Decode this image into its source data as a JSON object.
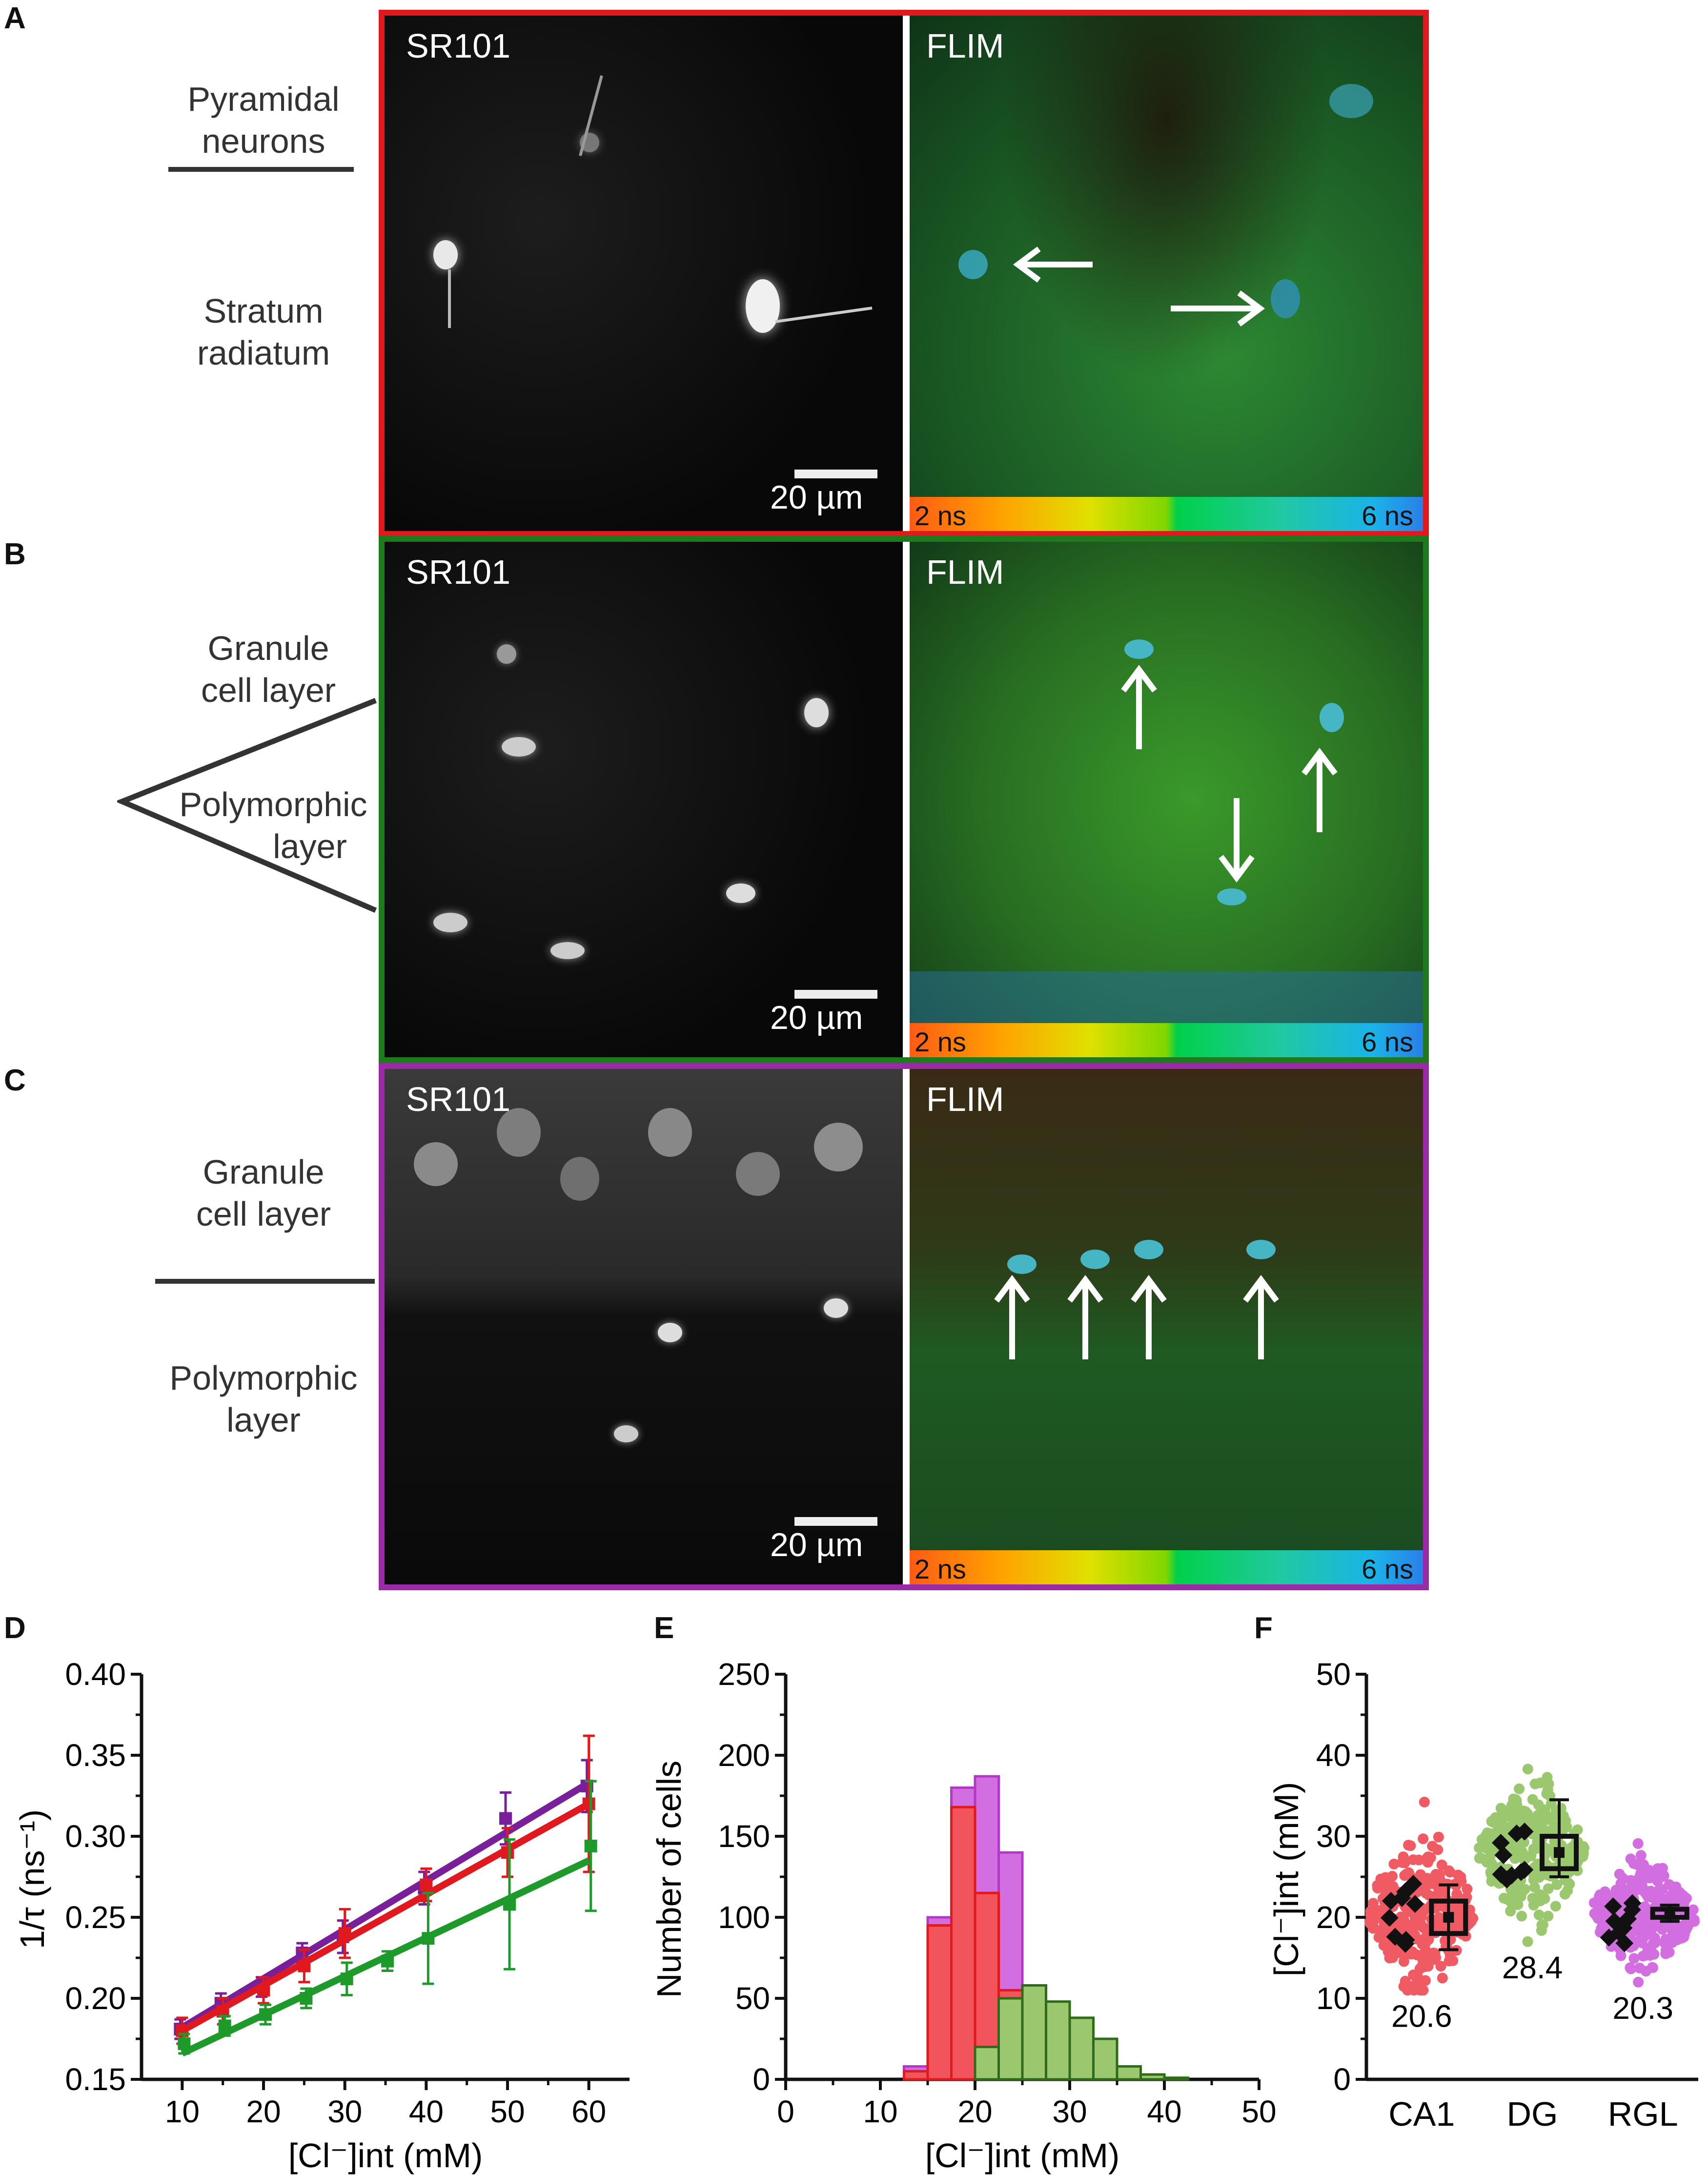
{
  "panels": {
    "A": {
      "letter": "A",
      "side_top": [
        "Pyramidal",
        "neurons"
      ],
      "side_bottom": [
        "Stratum",
        "radiatum"
      ],
      "sr_label": "SR101",
      "flim_label": "FLIM",
      "scale": "20 µm",
      "cbar_min": "2 ns",
      "cbar_max": "6 ns",
      "frame_color": "#e0191f"
    },
    "B": {
      "letter": "B",
      "side_top": [
        "Granule",
        "cell layer"
      ],
      "side_bottom": [
        "Polymorphic",
        "layer"
      ],
      "sr_label": "SR101",
      "flim_label": "FLIM",
      "scale": "20 µm",
      "cbar_min": "2 ns",
      "cbar_max": "6 ns",
      "frame_color": "#1d7a1d"
    },
    "C": {
      "letter": "C",
      "side_top": [
        "Granule",
        "cell layer"
      ],
      "side_bottom": [
        "Polymorphic",
        "layer"
      ],
      "sr_label": "SR101",
      "flim_label": "FLIM",
      "scale": "20 µm",
      "cbar_min": "2 ns",
      "cbar_max": "6 ns",
      "frame_color": "#9b2aa6"
    }
  },
  "chart_data": [
    {
      "panel": "D",
      "type": "line",
      "ylabel": "1/τ (ns⁻¹)",
      "xlabel": "[Cl⁻]int (mM)",
      "xlim": [
        5,
        65
      ],
      "ylim": [
        0.15,
        0.4
      ],
      "xticks": [
        10,
        20,
        30,
        40,
        50,
        60
      ],
      "yticks": [
        0.15,
        0.2,
        0.25,
        0.3,
        0.35,
        0.4
      ],
      "series": [
        {
          "color": "#7a1f9a",
          "x": [
            10,
            15,
            20,
            25,
            30,
            40,
            50,
            60
          ],
          "y": [
            0.181,
            0.197,
            0.207,
            0.228,
            0.238,
            0.268,
            0.311,
            0.331
          ],
          "err": [
            0.006,
            0.006,
            0.006,
            0.006,
            0.01,
            0.01,
            0.016,
            0.016
          ],
          "fit": [
            0.182,
            0.333
          ]
        },
        {
          "color": "#e0191f",
          "x": [
            10,
            15,
            20,
            25,
            30,
            40,
            50,
            60
          ],
          "y": [
            0.18,
            0.192,
            0.205,
            0.22,
            0.24,
            0.27,
            0.29,
            0.32
          ],
          "err": [
            0.008,
            0.008,
            0.008,
            0.01,
            0.015,
            0.01,
            0.015,
            0.042
          ],
          "fit": [
            0.18,
            0.32
          ]
        },
        {
          "color": "#1d9a2a",
          "x": [
            10,
            15,
            20,
            25,
            30,
            35,
            40,
            50,
            60
          ],
          "y": [
            0.172,
            0.183,
            0.19,
            0.2,
            0.212,
            0.223,
            0.237,
            0.258,
            0.294
          ],
          "err": [
            0.006,
            0.006,
            0.006,
            0.006,
            0.01,
            0.006,
            0.028,
            0.04,
            0.04
          ],
          "fit": [
            0.166,
            0.285
          ]
        }
      ]
    },
    {
      "panel": "E",
      "type": "bar",
      "ylabel": "Number of cells",
      "xlabel": "[Cl⁻]int (mM)",
      "xlim": [
        0,
        50
      ],
      "ylim": [
        0,
        250
      ],
      "xticks": [
        0,
        10,
        20,
        30,
        40,
        50
      ],
      "yticks": [
        0,
        50,
        100,
        150,
        200,
        250
      ],
      "bin_width": 2.5,
      "series": [
        {
          "color": "#d36ee0",
          "stroke": "#b03ac4",
          "bins": [
            12.5,
            15,
            17.5,
            20,
            22.5,
            25
          ],
          "values": [
            8,
            100,
            180,
            187,
            140,
            55
          ]
        },
        {
          "color": "#f2545b",
          "stroke": "#e0191f",
          "bins": [
            12.5,
            15,
            17.5,
            20,
            22.5
          ],
          "values": [
            5,
            95,
            168,
            115,
            55
          ]
        },
        {
          "color": "#9bc76e",
          "stroke": "#2e6b1a",
          "bins": [
            20,
            22.5,
            25,
            27.5,
            30,
            32.5,
            35,
            37.5,
            40
          ],
          "values": [
            20,
            50,
            58,
            48,
            38,
            25,
            8,
            3,
            1
          ]
        }
      ]
    },
    {
      "panel": "F",
      "type": "scatter",
      "ylabel": "[Cl⁻]int (mM)",
      "xlim": [
        0,
        3
      ],
      "ylim": [
        0,
        50
      ],
      "yticks": [
        0,
        10,
        20,
        30,
        40,
        50
      ],
      "categories": [
        "CA1",
        "DG",
        "RGL"
      ],
      "medians": [
        "20.6",
        "28.4",
        "20.3"
      ],
      "groups": [
        {
          "name": "CA1",
          "color": "#f05a63",
          "center": 20.5,
          "spread": [
            11,
            40
          ],
          "box": [
            18,
            20,
            22
          ],
          "whisk": [
            16,
            24
          ]
        },
        {
          "name": "DG",
          "color": "#9bc76e",
          "center": 28,
          "spread": [
            17,
            43
          ],
          "box": [
            26,
            28,
            30
          ],
          "whisk": [
            25,
            34.5
          ]
        },
        {
          "name": "RGL",
          "color": "#d36ee0",
          "center": 20.3,
          "spread": [
            12,
            31
          ],
          "box": [
            20,
            20.5,
            21
          ],
          "whisk": [
            19.5,
            21.5
          ]
        }
      ]
    }
  ],
  "letters": {
    "D": "D",
    "E": "E",
    "F": "F"
  }
}
